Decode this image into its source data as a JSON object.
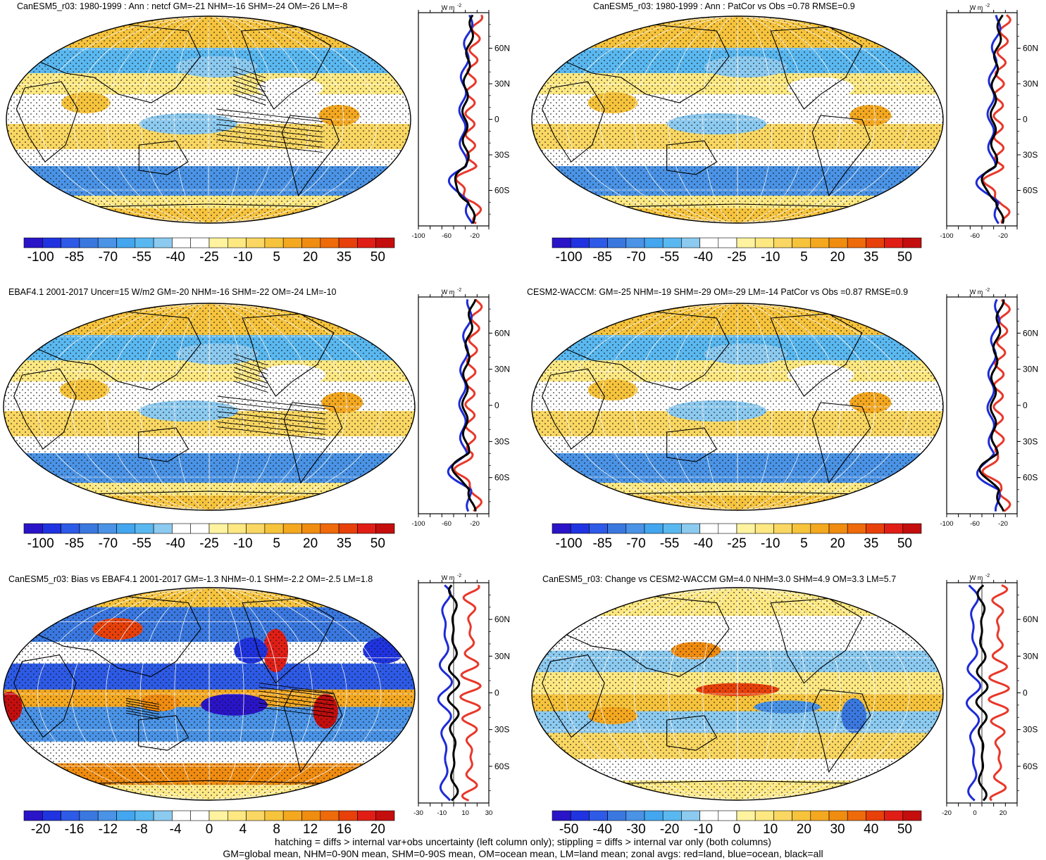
{
  "colors": {
    "scale": [
      "#2a14c8",
      "#1f33e0",
      "#2d5ae6",
      "#3a78e0",
      "#4a93e6",
      "#43a6ee",
      "#5ab8f0",
      "#8ccaf0",
      "#ffffff",
      "#ffffff",
      "#fff3a0",
      "#fde882",
      "#f9d762",
      "#f6c33c",
      "#f4a820",
      "#f08c10",
      "#ee6a0a",
      "#e8400a",
      "#e01e16",
      "#c40e0e"
    ],
    "land_line": "#e8382a",
    "ocean_line": "#1e2bd6",
    "all_line": "#000000"
  },
  "panels": [
    {
      "title": "CanESM5_r03: 1980-1999 : Ann : netcf GM=-21 NHM=-16 SHM=-24 OM=-26 LM=-8",
      "colorbar_labels": [
        "-100",
        "-85",
        "-70",
        "-55",
        "-40",
        "-25",
        "-10",
        "5",
        "20",
        "35",
        "50"
      ],
      "zonal_unit": "W m",
      "zonal_unit_exp": "-2",
      "zonal_x_labels": [
        "-100",
        "-60",
        "-20"
      ],
      "lat_labels": [
        "60N",
        "30N",
        "0",
        "30S",
        "60S"
      ],
      "hatching": true
    },
    {
      "title": "CanESM5_r03: 1980-1999 : Ann : PatCor vs Obs =0.78 RMSE=0.9",
      "colorbar_labels": [
        "-100",
        "-85",
        "-70",
        "-55",
        "-40",
        "-25",
        "-10",
        "5",
        "20",
        "35",
        "50"
      ],
      "zonal_unit": "W m",
      "zonal_unit_exp": "-2",
      "zonal_x_labels": [
        "-100",
        "-60",
        "-20"
      ],
      "lat_labels": [
        "60N",
        "30N",
        "0",
        "30S",
        "60S"
      ],
      "hatching": false
    },
    {
      "title": "EBAF4.1 2001-2017 Uncer=15 W/m2 GM=-20 NHM=-16 SHM=-22 OM=-24 LM=-10",
      "colorbar_labels": [
        "-100",
        "-85",
        "-70",
        "-55",
        "-40",
        "-25",
        "-10",
        "5",
        "20",
        "35",
        "50"
      ],
      "zonal_unit": "W m",
      "zonal_unit_exp": "-2",
      "zonal_x_labels": [
        "-100",
        "-60",
        "-20"
      ],
      "lat_labels": [
        "60N",
        "30N",
        "0",
        "30S",
        "60S"
      ],
      "hatching": true
    },
    {
      "title": "CESM2-WACCM: GM=-25 NHM=-19 SHM=-29 OM=-29 LM=-14 PatCor vs Obs =0.87 RMSE=0.9",
      "colorbar_labels": [
        "-100",
        "-85",
        "-70",
        "-55",
        "-40",
        "-25",
        "-10",
        "5",
        "20",
        "35",
        "50"
      ],
      "zonal_unit": "W m",
      "zonal_unit_exp": "-2",
      "zonal_x_labels": [
        "-100",
        "-60",
        "-20"
      ],
      "lat_labels": [
        "60N",
        "30N",
        "0",
        "30S",
        "60S"
      ],
      "hatching": false
    },
    {
      "title": "CanESM5_r03: Bias vs EBAF4.1 2001-2017 GM=-1.3 NHM=-0.1 SHM=-2.2 OM=-2.5 LM=1.8",
      "colorbar_labels": [
        "-20",
        "-16",
        "-12",
        "-8",
        "-4",
        "0",
        "4",
        "8",
        "12",
        "16",
        "20"
      ],
      "zonal_unit": "W m",
      "zonal_unit_exp": "-2",
      "zonal_x_labels": [
        "-30",
        "-10",
        "10",
        "30"
      ],
      "lat_labels": [
        "60N",
        "30N",
        "0",
        "30S",
        "60S"
      ],
      "hatching": true
    },
    {
      "title": "CanESM5_r03: Change vs CESM2-WACCM GM=4.0 NHM=3.0 SHM=4.9 OM=3.3 LM=5.7",
      "colorbar_labels": [
        "-50",
        "-40",
        "-30",
        "-20",
        "-10",
        "0",
        "10",
        "20",
        "30",
        "40",
        "50"
      ],
      "zonal_unit": "W m",
      "zonal_unit_exp": "-2",
      "zonal_x_labels": [
        "-20",
        "0",
        "20"
      ],
      "lat_labels": [
        "60N",
        "30N",
        "0",
        "30S",
        "60S"
      ],
      "hatching": false
    }
  ],
  "footer": {
    "line1": "hatching = diffs > internal var+obs uncertainty (left column only); stippling = diffs > internal var only (both columns)",
    "line2": "GM=global mean, NHM=0-90N mean, SHM=0-90S mean, OM=ocean mean, LM=land mean; zonal avgs: red=land, blue=ocean, black=all"
  }
}
